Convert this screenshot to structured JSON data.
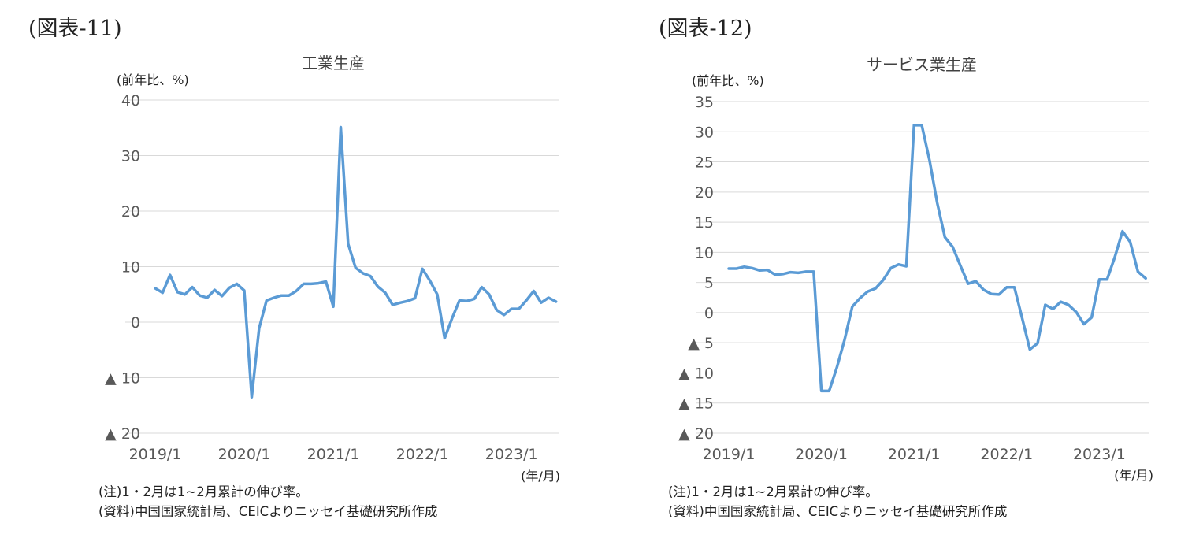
{
  "figures": [
    {
      "label": "(図表-11)",
      "chart_data": {
        "type": "line",
        "title": "工業生産",
        "unit_label": "(前年比、%)",
        "xlabel": "(年/月)",
        "x_ticks": [
          "2019/1",
          "2020/1",
          "2021/1",
          "2022/1",
          "2023/1"
        ],
        "y_ticks": [
          {
            "value": 40,
            "label": "40"
          },
          {
            "value": 30,
            "label": "30"
          },
          {
            "value": 20,
            "label": "20"
          },
          {
            "value": 10,
            "label": "10"
          },
          {
            "value": 0,
            "label": "0"
          },
          {
            "value": -10,
            "label": "▲ 10"
          },
          {
            "value": -20,
            "label": "▲ 20"
          }
        ],
        "ylim": [
          -20,
          40
        ],
        "grid": true,
        "line_color": "#5b9bd5",
        "series": [
          {
            "start": "2019/1",
            "end": "2023/6",
            "values": [
              6.1,
              5.3,
              8.5,
              5.4,
              5.0,
              6.3,
              4.8,
              4.4,
              5.8,
              4.7,
              6.2,
              6.9,
              5.7,
              -13.5,
              -1.1,
              3.9,
              4.4,
              4.8,
              4.8,
              5.6,
              6.9,
              6.9,
              7.0,
              7.3,
              2.8,
              35.1,
              14.1,
              9.8,
              8.8,
              8.3,
              6.4,
              5.3,
              3.1,
              3.5,
              3.8,
              4.3,
              9.6,
              7.5,
              5.0,
              -2.9,
              0.7,
              3.9,
              3.8,
              4.2,
              6.3,
              5.0,
              2.2,
              1.3,
              2.4,
              2.4,
              3.9,
              5.6,
              3.5,
              4.4,
              3.7
            ]
          }
        ]
      },
      "notes": [
        "(注)1・2月は1~2月累計の伸び率。",
        "(資料)中国国家統計局、CEICよりニッセイ基礎研究所作成"
      ]
    },
    {
      "label": "(図表-12)",
      "chart_data": {
        "type": "line",
        "title": "サービス業生産",
        "unit_label": "(前年比、%)",
        "xlabel": "(年/月)",
        "x_ticks": [
          "2019/1",
          "2020/1",
          "2021/1",
          "2022/1",
          "2023/1"
        ],
        "y_ticks": [
          {
            "value": 35,
            "label": "35"
          },
          {
            "value": 30,
            "label": "30"
          },
          {
            "value": 25,
            "label": "25"
          },
          {
            "value": 20,
            "label": "20"
          },
          {
            "value": 15,
            "label": "15"
          },
          {
            "value": 10,
            "label": "10"
          },
          {
            "value": 5,
            "label": "5"
          },
          {
            "value": 0,
            "label": "0"
          },
          {
            "value": -5,
            "label": "▲ 5"
          },
          {
            "value": -10,
            "label": "▲ 10"
          },
          {
            "value": -15,
            "label": "▲ 15"
          },
          {
            "value": -20,
            "label": "▲ 20"
          }
        ],
        "ylim": [
          -20,
          35
        ],
        "grid": true,
        "line_color": "#5b9bd5",
        "series": [
          {
            "start": "2019/1",
            "end": "2023/6",
            "values": [
              7.3,
              7.3,
              7.6,
              7.4,
              7.0,
              7.1,
              6.3,
              6.4,
              6.7,
              6.6,
              6.8,
              6.8,
              -13.0,
              -13.0,
              -9.1,
              -4.5,
              1.0,
              2.4,
              3.5,
              4.0,
              5.4,
              7.4,
              8.0,
              7.7,
              31.1,
              31.1,
              25.3,
              18.2,
              12.5,
              10.9,
              7.8,
              4.8,
              5.2,
              3.8,
              3.1,
              3.0,
              4.2,
              4.2,
              -0.9,
              -6.1,
              -5.1,
              1.3,
              0.6,
              1.8,
              1.3,
              0.1,
              -1.9,
              -0.8,
              5.5,
              5.5,
              9.2,
              13.5,
              11.7,
              6.8,
              5.7
            ]
          }
        ]
      },
      "notes": [
        "(注)1・2月は1~2月累計の伸び率。",
        "(資料)中国国家統計局、CEICよりニッセイ基礎研究所作成"
      ]
    }
  ]
}
